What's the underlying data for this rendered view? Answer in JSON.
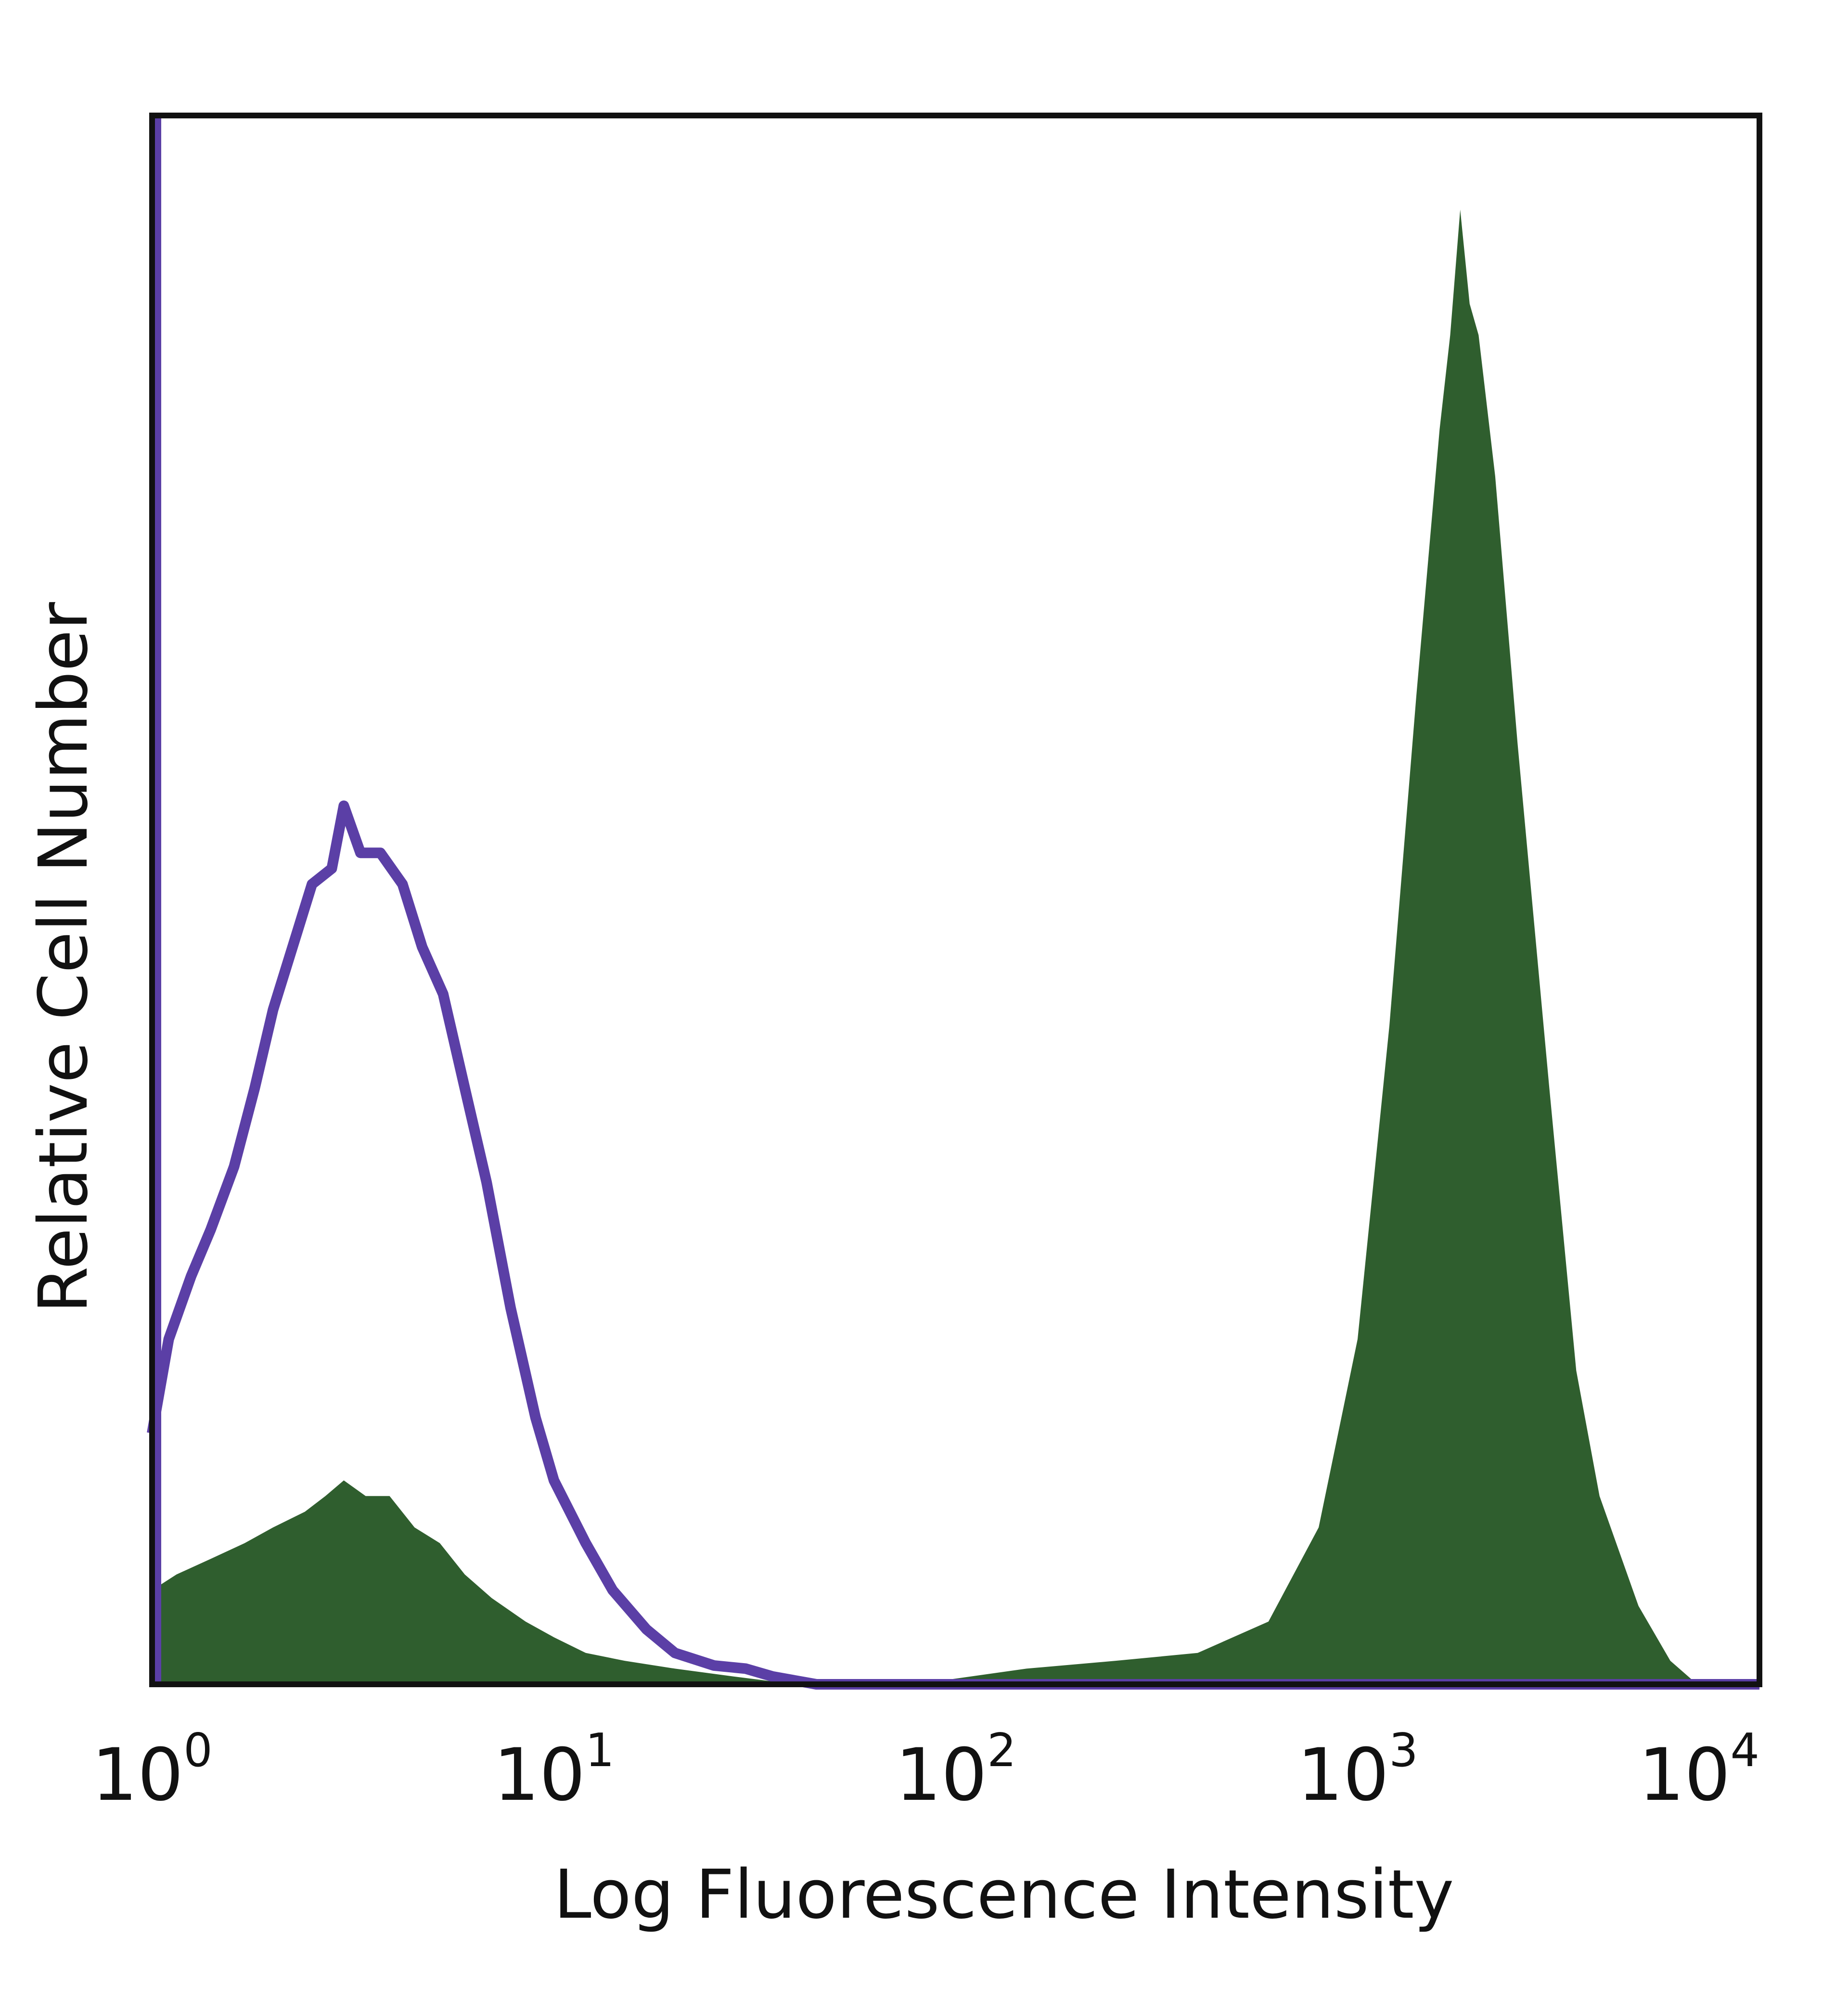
{
  "chart_data": {
    "type": "area",
    "xlabel": "Log Fluorescence Intensity",
    "ylabel": "Relative Cell Number",
    "xscale": "log",
    "xlim": [
      1,
      10000
    ],
    "ylim": [
      0,
      1
    ],
    "x_ticks": [
      {
        "base": "10",
        "exp": "0",
        "value": 1
      },
      {
        "base": "10",
        "exp": "1",
        "value": 10
      },
      {
        "base": "10",
        "exp": "2",
        "value": 100
      },
      {
        "base": "10",
        "exp": "3",
        "value": 1000
      },
      {
        "base": "10",
        "exp": "4",
        "value": 10000
      }
    ],
    "grid": false,
    "legend": "none",
    "series": [
      {
        "style": "outline",
        "color": "#5b3fa6",
        "points": [
          [
            1.0,
            0.16
          ],
          [
            1.1,
            0.22
          ],
          [
            1.25,
            0.26
          ],
          [
            1.4,
            0.29
          ],
          [
            1.6,
            0.33
          ],
          [
            1.8,
            0.38
          ],
          [
            2.0,
            0.43
          ],
          [
            2.3,
            0.48
          ],
          [
            2.5,
            0.51
          ],
          [
            2.8,
            0.52
          ],
          [
            3.0,
            0.56
          ],
          [
            3.3,
            0.53
          ],
          [
            3.7,
            0.53
          ],
          [
            4.2,
            0.51
          ],
          [
            4.7,
            0.47
          ],
          [
            5.3,
            0.44
          ],
          [
            6.0,
            0.38
          ],
          [
            6.8,
            0.32
          ],
          [
            7.8,
            0.24
          ],
          [
            9.0,
            0.17
          ],
          [
            10.0,
            0.13
          ],
          [
            12.0,
            0.09
          ],
          [
            14.0,
            0.06
          ],
          [
            17.0,
            0.035
          ],
          [
            20.0,
            0.02
          ],
          [
            25.0,
            0.012
          ],
          [
            30.0,
            0.01
          ],
          [
            35.0,
            0.005
          ],
          [
            45.0,
            0.0
          ],
          [
            10000.0,
            0.0
          ]
        ]
      },
      {
        "style": "filled",
        "color": "#2f5e2e",
        "points": [
          [
            1.0,
            0.06
          ],
          [
            1.15,
            0.07
          ],
          [
            1.4,
            0.08
          ],
          [
            1.7,
            0.09
          ],
          [
            2.0,
            0.1
          ],
          [
            2.4,
            0.11
          ],
          [
            2.7,
            0.12
          ],
          [
            3.0,
            0.13
          ],
          [
            3.4,
            0.12
          ],
          [
            3.9,
            0.12
          ],
          [
            4.5,
            0.1
          ],
          [
            5.2,
            0.09
          ],
          [
            6.0,
            0.07
          ],
          [
            7.0,
            0.055
          ],
          [
            8.5,
            0.04
          ],
          [
            10.0,
            0.03
          ],
          [
            12.0,
            0.02
          ],
          [
            15.0,
            0.015
          ],
          [
            20.0,
            0.01
          ],
          [
            28.0,
            0.005
          ],
          [
            40.0,
            0.0
          ],
          [
            60.0,
            0.002
          ],
          [
            90.0,
            0.002
          ],
          [
            150.0,
            0.01
          ],
          [
            250.0,
            0.015
          ],
          [
            400.0,
            0.02
          ],
          [
            600.0,
            0.04
          ],
          [
            800.0,
            0.1
          ],
          [
            1000.0,
            0.22
          ],
          [
            1200.0,
            0.42
          ],
          [
            1400.0,
            0.63
          ],
          [
            1600.0,
            0.8
          ],
          [
            1700.0,
            0.86
          ],
          [
            1800.0,
            0.94
          ],
          [
            1900.0,
            0.88
          ],
          [
            2000.0,
            0.86
          ],
          [
            2200.0,
            0.77
          ],
          [
            2500.0,
            0.6
          ],
          [
            3000.0,
            0.38
          ],
          [
            3500.0,
            0.2
          ],
          [
            4000.0,
            0.12
          ],
          [
            5000.0,
            0.05
          ],
          [
            6000.0,
            0.015
          ],
          [
            7000.0,
            0.0
          ],
          [
            10000.0,
            0.0
          ]
        ]
      }
    ]
  },
  "colors": {
    "axis": "#111111",
    "outline_series": "#5b3fa6",
    "filled_series": "#2f5e2e"
  }
}
